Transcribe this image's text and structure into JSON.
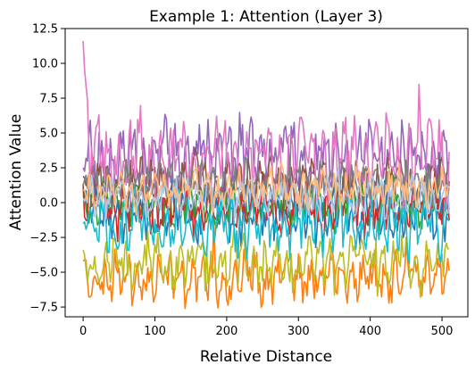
{
  "chart_data": {
    "type": "line",
    "title": "Example 1: Attention (Layer 3)",
    "xlabel": "Relative Distance",
    "ylabel": "Attention Value",
    "xlim": [
      -25,
      536
    ],
    "ylim": [
      -8.2,
      12.5
    ],
    "xticks": [
      0,
      100,
      200,
      300,
      400,
      500
    ],
    "yticks": [
      -7.5,
      -5.0,
      -2.5,
      0.0,
      2.5,
      5.0,
      7.5,
      10.0,
      12.5
    ],
    "ytick_labels": [
      "−7.5",
      "−5.0",
      "−2.5",
      "0.0",
      "2.5",
      "5.0",
      "7.5",
      "10.0",
      "12.5"
    ],
    "grid": false,
    "legend": "none",
    "x_range": [
      0,
      511
    ],
    "series": [
      {
        "color": "#1f77b4",
        "mean": -0.6,
        "amp": 1.3,
        "start": 0.5,
        "seed": 11
      },
      {
        "color": "#ff7f0e",
        "mean": -5.3,
        "amp": 1.2,
        "start": -4.2,
        "seed": 23
      },
      {
        "color": "#2ca02c",
        "mean": -0.1,
        "amp": 1.0,
        "start": 1.0,
        "seed": 37
      },
      {
        "color": "#d62728",
        "mean": -0.3,
        "amp": 1.2,
        "start": -0.8,
        "seed": 41
      },
      {
        "color": "#9467bd",
        "mean": 3.4,
        "amp": 1.6,
        "start": 2.5,
        "seed": 53
      },
      {
        "color": "#8c564b",
        "mean": 1.6,
        "amp": 1.1,
        "start": 1.9,
        "seed": 67
      },
      {
        "color": "#e377c2",
        "mean": 3.2,
        "amp": 1.8,
        "start": 11.6,
        "seed": 71
      },
      {
        "color": "#7f7f7f",
        "mean": 1.4,
        "amp": 1.0,
        "start": 1.2,
        "seed": 83
      },
      {
        "color": "#bcbd22",
        "mean": -4.4,
        "amp": 1.2,
        "start": -3.4,
        "seed": 97
      },
      {
        "color": "#17becf",
        "mean": -1.6,
        "amp": 1.4,
        "start": -1.5,
        "seed": 101
      },
      {
        "color": "#aec7e8",
        "mean": 0.4,
        "amp": 0.9,
        "start": 0.3,
        "seed": 113
      },
      {
        "color": "#ffbb78",
        "mean": 1.0,
        "amp": 0.9,
        "start": 0.9,
        "seed": 127
      }
    ]
  }
}
